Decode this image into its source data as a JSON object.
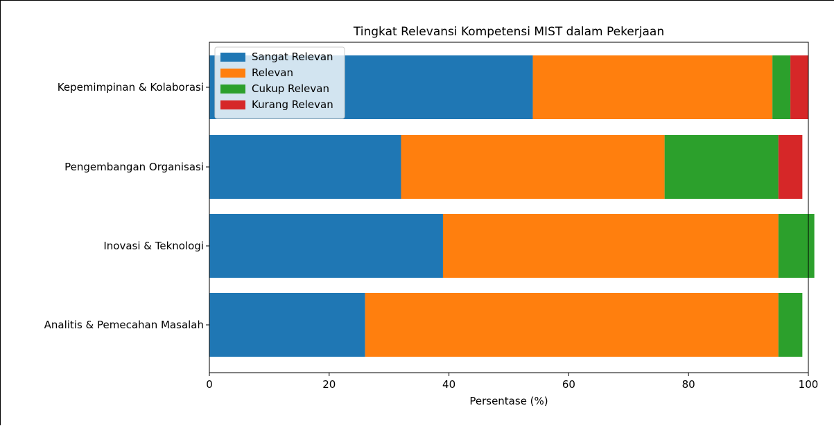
{
  "chart_data": {
    "type": "bar",
    "orientation": "horizontal",
    "stacked": true,
    "title": "Tingkat Relevansi Kompetensi MIST dalam Pekerjaan",
    "xlabel": "Persentase (%)",
    "ylabel": "",
    "xlim": [
      0,
      100
    ],
    "xticks": [
      "0",
      "20",
      "40",
      "60",
      "80",
      "100"
    ],
    "categories": [
      "Kepemimpinan & Kolaborasi",
      "Pengembangan Organisasi",
      "Inovasi & Teknologi",
      "Analitis & Pemecahan Masalah"
    ],
    "series": [
      {
        "name": "Sangat Relevan",
        "color": "#1f77b4",
        "values": [
          54,
          32,
          39,
          26
        ]
      },
      {
        "name": "Relevan",
        "color": "#ff7f0e",
        "values": [
          40,
          44,
          56,
          69
        ]
      },
      {
        "name": "Cukup Relevan",
        "color": "#2ca02c",
        "values": [
          3,
          19,
          6,
          4
        ]
      },
      {
        "name": "Kurang Relevan",
        "color": "#d62728",
        "values": [
          3,
          4,
          0,
          0
        ]
      }
    ],
    "legend": "top-left",
    "grid": false
  }
}
